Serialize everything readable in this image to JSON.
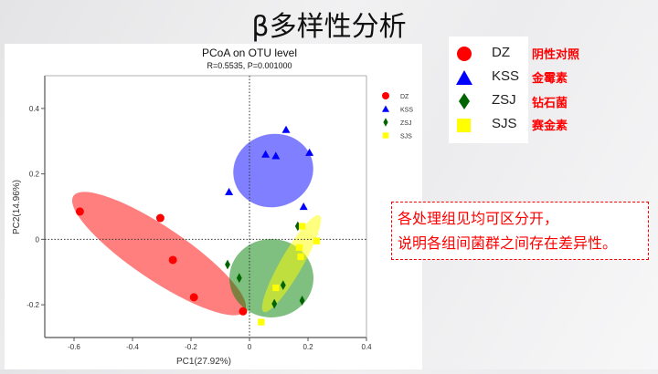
{
  "slide_title": "β多样性分析",
  "chart_data": {
    "type": "scatter",
    "title": "PCoA on OTU level",
    "subtitle": "R=0.5535, P=0.001000",
    "xlabel": "PC1(27.92%)",
    "ylabel": "PC2(14.96%)",
    "xlim": [
      -0.7,
      0.4
    ],
    "ylim": [
      -0.3,
      0.5
    ],
    "xticks": [
      "-0.6",
      "-0.4",
      "-0.2",
      "0",
      "0.2",
      "0.4"
    ],
    "xtick_values": [
      -0.6,
      -0.4,
      -0.2,
      0,
      0.2,
      0.4
    ],
    "yticks": [
      "-0.2",
      "0",
      "0.2",
      "0.4"
    ],
    "ytick_values": [
      -0.2,
      0,
      0.2,
      0.4
    ],
    "legend_position": "right",
    "series": [
      {
        "name": "DZ",
        "color": "#ff0000",
        "marker": "circle",
        "x": [
          -0.58,
          -0.305,
          -0.262,
          -0.19,
          -0.022
        ],
        "y": [
          0.085,
          0.065,
          -0.063,
          -0.177,
          -0.22
        ]
      },
      {
        "name": "KSS",
        "color": "#0000ff",
        "marker": "triangle",
        "x": [
          -0.07,
          0.055,
          0.09,
          0.125,
          0.205,
          0.185
        ],
        "y": [
          0.145,
          0.26,
          0.255,
          0.335,
          0.265,
          0.1
        ]
      },
      {
        "name": "ZSJ",
        "color": "#006400",
        "marker": "diamond",
        "x": [
          -0.075,
          -0.035,
          0.085,
          0.115,
          0.18,
          0.165
        ],
        "y": [
          -0.077,
          -0.118,
          -0.197,
          -0.14,
          -0.187,
          0.04
        ]
      },
      {
        "name": "SJS",
        "color": "#ffff00",
        "marker": "square",
        "x": [
          0.04,
          0.09,
          0.18,
          0.23,
          0.17,
          0.175
        ],
        "y": [
          -0.253,
          -0.148,
          0.04,
          -0.005,
          -0.025,
          -0.053
        ]
      }
    ]
  },
  "legend": [
    {
      "label": "DZ",
      "cn": "阴性对照"
    },
    {
      "label": "KSS",
      "cn": "金霉素"
    },
    {
      "label": "ZSJ",
      "cn": "钻石菌"
    },
    {
      "label": "SJS",
      "cn": "赛金素"
    }
  ],
  "note": {
    "line1": "各处理组见均可区分开，",
    "line2": "说明各组间菌群之间存在差异性。"
  }
}
